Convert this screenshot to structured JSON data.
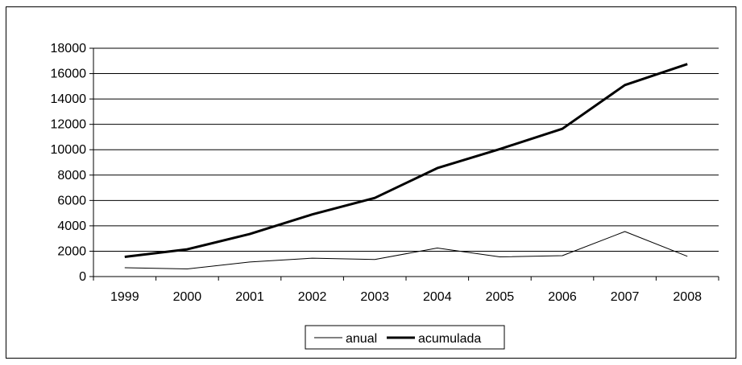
{
  "chart_data": {
    "type": "line",
    "title": "",
    "xlabel": "",
    "ylabel": "",
    "categories": [
      "1999",
      "2000",
      "2001",
      "2002",
      "2003",
      "2004",
      "2005",
      "2006",
      "2007",
      "2008"
    ],
    "ylim": [
      0,
      18000
    ],
    "yticks": [
      0,
      2000,
      4000,
      6000,
      8000,
      10000,
      12000,
      14000,
      16000,
      18000
    ],
    "grid": "horizontal",
    "legend_position": "bottom",
    "series": [
      {
        "name": "anual",
        "values": [
          700,
          600,
          1150,
          1450,
          1350,
          2250,
          1550,
          1650,
          3550,
          1600
        ],
        "color": "#000000",
        "weight": "thin"
      },
      {
        "name": "acumulada",
        "values": [
          1550,
          2150,
          3350,
          4900,
          6200,
          8550,
          10050,
          11650,
          15100,
          16750
        ],
        "color": "#000000",
        "weight": "thick"
      }
    ]
  }
}
